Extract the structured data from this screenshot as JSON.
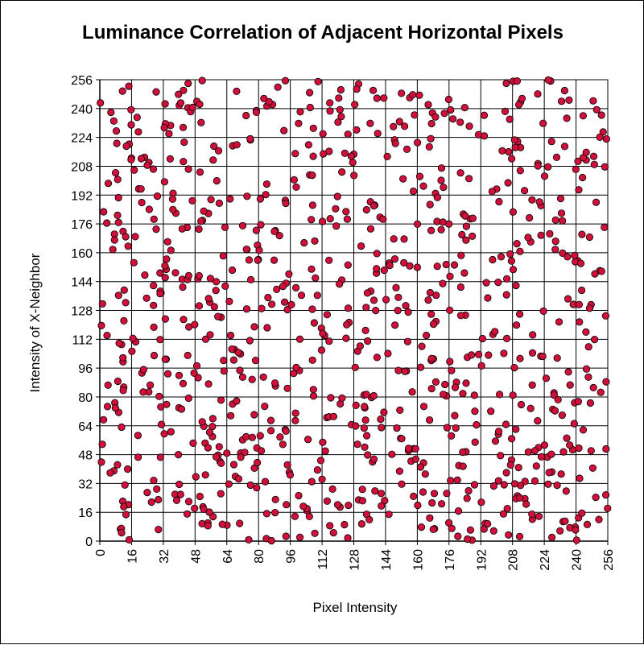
{
  "chart_data": {
    "type": "scatter",
    "title": "Luminance Correlation of Adjacent Horizontal Pixels",
    "xlabel": "Pixel Intensity",
    "ylabel": "Intensity of X-Neighbor",
    "xlim": [
      0,
      256
    ],
    "ylim": [
      0,
      256
    ],
    "xticks": [
      "0",
      "16",
      "32",
      "48",
      "64",
      "80",
      "96",
      "112",
      "128",
      "144",
      "160",
      "176",
      "192",
      "208",
      "224",
      "240",
      "256"
    ],
    "yticks": [
      "0",
      "16",
      "32",
      "48",
      "64",
      "80",
      "96",
      "112",
      "128",
      "144",
      "160",
      "176",
      "192",
      "208",
      "224",
      "240",
      "256"
    ],
    "grid": true,
    "marker_color": "#d0103a",
    "marker_edge": "#000000",
    "count": 900
  }
}
